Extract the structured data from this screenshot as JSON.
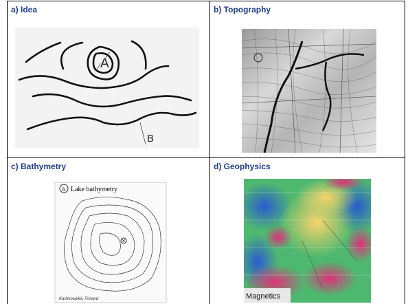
{
  "panels": [
    {
      "title": "a) Idea",
      "labels": [
        "A",
        "B"
      ]
    },
    {
      "title": "b) Topography"
    },
    {
      "title": "c) Bathymetry",
      "labels": [
        "h",
        "Lake bathymetry",
        "Karikkoselkä, Finland"
      ]
    },
    {
      "title": "d) Geophysics",
      "labels": [
        "Magnetics"
      ]
    }
  ]
}
